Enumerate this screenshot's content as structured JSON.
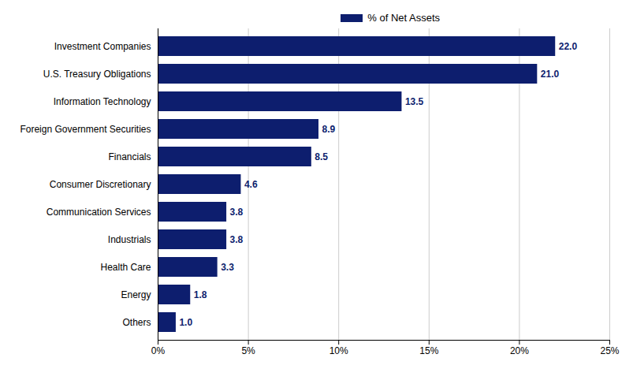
{
  "chart_data": {
    "type": "bar",
    "orientation": "horizontal",
    "categories": [
      "Others",
      "Energy",
      "Health Care",
      "Industrials",
      "Communication Services",
      "Consumer Discretionary",
      "Financials",
      "Foreign Government Securities",
      "Information Technology",
      "U.S. Treasury Obligations",
      "Investment Companies"
    ],
    "series": [
      {
        "name": "% of Net Assets",
        "color": "#0d1e6e",
        "values": [
          1.0,
          1.8,
          3.3,
          3.8,
          3.8,
          4.6,
          8.5,
          8.9,
          13.5,
          21.0,
          22.0
        ],
        "value_labels": [
          "1.0",
          "1.8",
          "3.3",
          "3.8",
          "3.8",
          "4.6",
          "8.5",
          "8.9",
          "13.5",
          "21.0",
          "22.0"
        ]
      }
    ],
    "xlim": [
      0,
      25
    ],
    "xticks": [
      {
        "value": 0,
        "label": "0%"
      },
      {
        "value": 5,
        "label": "5%"
      },
      {
        "value": 10,
        "label": "10%"
      },
      {
        "value": 15,
        "label": "15%"
      },
      {
        "value": 20,
        "label": "20%"
      },
      {
        "value": 25,
        "label": "25%"
      }
    ],
    "grid": true,
    "legend": "top",
    "data_labels": true
  }
}
